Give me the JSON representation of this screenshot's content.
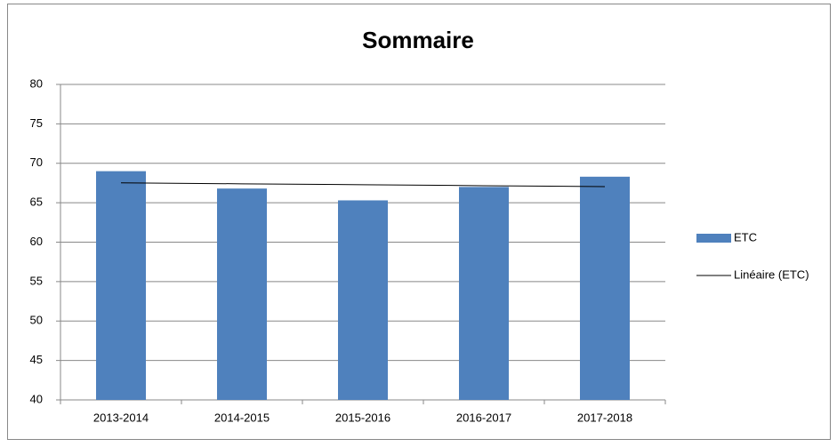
{
  "chart_data": {
    "type": "bar",
    "title": "Sommaire",
    "categories": [
      "2013-2014",
      "2014-2015",
      "2015-2016",
      "2016-2017",
      "2017-2018"
    ],
    "series": [
      {
        "name": "ETC",
        "color": "#4f81bd",
        "values": [
          69,
          66.8,
          65.3,
          67,
          68.3
        ]
      }
    ],
    "trendline": {
      "name": "Linéaire (ETC)",
      "type": "linear",
      "color": "#000000"
    },
    "ylim": [
      40,
      80
    ],
    "yticks": [
      40,
      45,
      50,
      55,
      60,
      65,
      70,
      75,
      80
    ],
    "grid": true,
    "legend": "right"
  }
}
